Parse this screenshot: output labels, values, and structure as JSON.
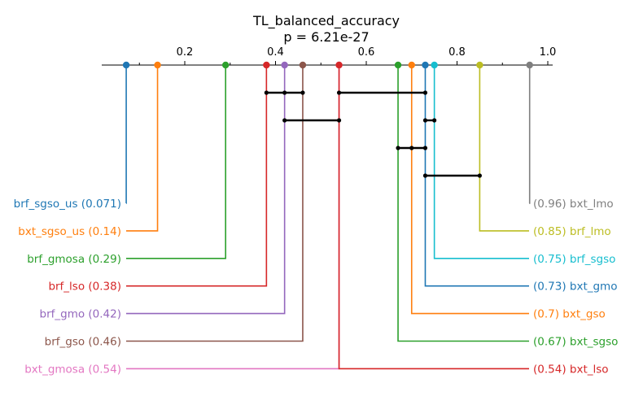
{
  "chart_data": {
    "type": "critical-difference",
    "title": "TL_balanced_accuracy",
    "subtitle": "p = 6.21e-27",
    "xlim": [
      0.0,
      1.0
    ],
    "ticks": [
      0.2,
      0.4,
      0.6,
      0.8,
      1.0
    ],
    "tick_labels": [
      "0.2",
      "0.4",
      "0.6",
      "0.8",
      "1.0"
    ],
    "items": [
      {
        "name": "brf_sgso_us",
        "value": 0.071,
        "value_text": "0.071",
        "color": "#1f77b4",
        "side": "left"
      },
      {
        "name": "bxt_sgso_us",
        "value": 0.14,
        "value_text": "0.14",
        "color": "#ff7f0e",
        "side": "left"
      },
      {
        "name": "brf_gmosa",
        "value": 0.29,
        "value_text": "0.29",
        "color": "#2ca02c",
        "side": "left"
      },
      {
        "name": "brf_lso",
        "value": 0.38,
        "value_text": "0.38",
        "color": "#d62728",
        "side": "left"
      },
      {
        "name": "brf_gmo",
        "value": 0.42,
        "value_text": "0.42",
        "color": "#9467bd",
        "side": "left"
      },
      {
        "name": "brf_gso",
        "value": 0.46,
        "value_text": "0.46",
        "color": "#8c564b",
        "side": "left"
      },
      {
        "name": "bxt_gmosa",
        "value": 0.54,
        "value_text": "0.54",
        "color": "#e377c2",
        "side": "left"
      },
      {
        "name": "bxt_lmo",
        "value": 0.96,
        "value_text": "0.96",
        "color": "#7f7f7f",
        "side": "right"
      },
      {
        "name": "brf_lmo",
        "value": 0.85,
        "value_text": "0.85",
        "color": "#bcbd22",
        "side": "right"
      },
      {
        "name": "brf_sgso",
        "value": 0.75,
        "value_text": "0.75",
        "color": "#17becf",
        "side": "right"
      },
      {
        "name": "bxt_gmo",
        "value": 0.73,
        "value_text": "0.73",
        "color": "#1f77b4",
        "side": "right"
      },
      {
        "name": "bxt_gso",
        "value": 0.7,
        "value_text": "0.7",
        "color": "#ff7f0e",
        "side": "right"
      },
      {
        "name": "bxt_sgso",
        "value": 0.67,
        "value_text": "0.67",
        "color": "#2ca02c",
        "side": "right"
      },
      {
        "name": "bxt_lso",
        "value": 0.54,
        "value_text": "0.54",
        "color": "#d62728",
        "side": "right"
      }
    ],
    "cliques": [
      {
        "from": 0.38,
        "to": 0.46,
        "points": [
          0.38,
          0.42,
          0.46
        ]
      },
      {
        "from": 0.54,
        "to": 0.73,
        "points": [
          0.54,
          0.73
        ]
      },
      {
        "from": 0.42,
        "to": 0.54,
        "points": [
          0.42,
          0.54
        ]
      },
      {
        "from": 0.73,
        "to": 0.75,
        "points": [
          0.73,
          0.75
        ]
      },
      {
        "from": 0.67,
        "to": 0.73,
        "points": [
          0.67,
          0.7,
          0.73
        ]
      },
      {
        "from": 0.73,
        "to": 0.85,
        "points": [
          0.73,
          0.85
        ]
      }
    ]
  }
}
